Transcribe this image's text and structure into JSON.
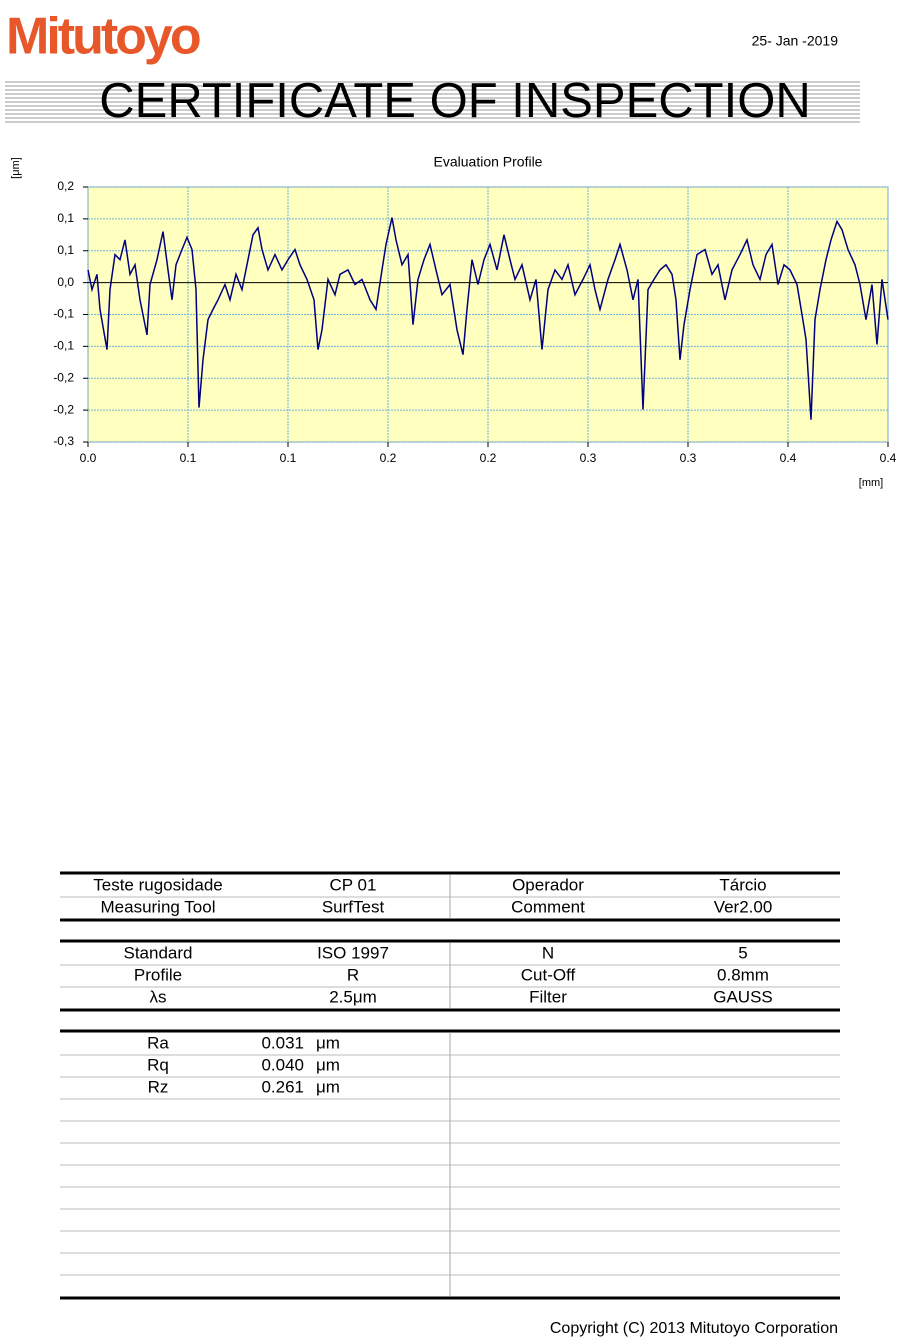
{
  "header": {
    "logo": "Mitutoyo",
    "date": "25- Jan -2019",
    "title": "CERTIFICATE OF INSPECTION"
  },
  "chart_data": {
    "type": "line",
    "title": "Evaluation Profile",
    "y_label": "[μm]",
    "x_label": "[mm]",
    "color": "#000080",
    "grid": true,
    "xlim": [
      0,
      0.4
    ],
    "xticks": [
      {
        "value": 0,
        "label": "0.0"
      },
      {
        "value": 0.05,
        "label": "0.1"
      },
      0.1,
      {
        "value": 0.15,
        "label": "0.2"
      },
      0.2,
      {
        "value": 0.25,
        "label": "0.3"
      },
      0.3,
      {
        "value": 0.35,
        "label": "0.4"
      },
      0.4
    ],
    "ylim": [
      -0.25,
      0.15
    ],
    "yticks": [
      {
        "value": 0.15,
        "label": "0,2"
      },
      {
        "value": 0.1,
        "label": "0,1"
      },
      {
        "value": 0.05,
        "label": "0,1"
      },
      {
        "value": 0,
        "label": "0,0"
      },
      {
        "value": -0.05,
        "label": "-0,1"
      },
      {
        "value": -0.1,
        "label": "-0,1"
      },
      {
        "value": -0.15,
        "label": "-0,2"
      },
      {
        "value": -0.2,
        "label": "-0,2"
      },
      {
        "value": -0.25,
        "label": "-0,3"
      }
    ],
    "x": [
      0,
      0.002,
      0.0045,
      0.006,
      0.0095,
      0.011,
      0.0135,
      0.016,
      0.0185,
      0.021,
      0.0235,
      0.026,
      0.0295,
      0.031,
      0.0345,
      0.0375,
      0.04,
      0.042,
      0.044,
      0.047,
      0.0495,
      0.052,
      0.054,
      0.0555,
      0.0575,
      0.06,
      0.0625,
      0.065,
      0.0685,
      0.071,
      0.074,
      0.077,
      0.08,
      0.0825,
      0.085,
      0.087,
      0.09,
      0.0935,
      0.097,
      0.1,
      0.1035,
      0.106,
      0.1095,
      0.113,
      0.115,
      0.117,
      0.12,
      0.1235,
      0.126,
      0.13,
      0.1335,
      0.137,
      0.141,
      0.144,
      0.147,
      0.149,
      0.152,
      0.154,
      0.157,
      0.16,
      0.1625,
      0.165,
      0.168,
      0.171,
      0.174,
      0.177,
      0.181,
      0.1845,
      0.1875,
      0.1895,
      0.192,
      0.195,
      0.198,
      0.201,
      0.2045,
      0.208,
      0.211,
      0.2135,
      0.217,
      0.221,
      0.224,
      0.227,
      0.23,
      0.2335,
      0.237,
      0.24,
      0.2435,
      0.2475,
      0.251,
      0.2535,
      0.256,
      0.26,
      0.2635,
      0.266,
      0.2695,
      0.2725,
      0.275,
      0.2775,
      0.28,
      0.283,
      0.286,
      0.289,
      0.292,
      0.294,
      0.296,
      0.298,
      0.301,
      0.3045,
      0.3085,
      0.312,
      0.315,
      0.3185,
      0.322,
      0.326,
      0.3295,
      0.3325,
      0.336,
      0.339,
      0.342,
      0.345,
      0.348,
      0.351,
      0.3545,
      0.357,
      0.359,
      0.3615,
      0.3635,
      0.366,
      0.369,
      0.3715,
      0.3745,
      0.377,
      0.38,
      0.3835,
      0.386,
      0.389,
      0.392,
      0.3945,
      0.397,
      0.4
    ],
    "values": [
      0.02,
      -0.011,
      0.013,
      -0.042,
      -0.105,
      -0.011,
      0.044,
      0.036,
      0.067,
      0.013,
      0.028,
      -0.027,
      -0.082,
      -0.003,
      0.036,
      0.08,
      0.02,
      -0.027,
      0.028,
      0.052,
      0.071,
      0.052,
      -0.011,
      -0.196,
      -0.121,
      -0.058,
      -0.042,
      -0.027,
      -0.003,
      -0.027,
      0.013,
      -0.011,
      0.036,
      0.075,
      0.086,
      0.052,
      0.02,
      0.044,
      0.02,
      0.036,
      0.052,
      0.028,
      0.005,
      -0.027,
      -0.105,
      -0.074,
      0.005,
      -0.019,
      0.013,
      0.02,
      -0.003,
      0.005,
      -0.027,
      -0.042,
      0.02,
      0.06,
      0.102,
      0.067,
      0.028,
      0.044,
      -0.066,
      0.005,
      0.036,
      0.06,
      0.02,
      -0.019,
      -0.003,
      -0.074,
      -0.113,
      -0.042,
      0.036,
      -0.003,
      0.036,
      0.06,
      0.02,
      0.075,
      0.036,
      0.005,
      0.028,
      -0.027,
      0.005,
      -0.105,
      -0.011,
      0.02,
      0.005,
      0.028,
      -0.019,
      0.005,
      0.028,
      -0.011,
      -0.042,
      0.005,
      0.036,
      0.06,
      0.02,
      -0.027,
      0.005,
      -0.199,
      -0.011,
      0.005,
      0.02,
      0.028,
      0.013,
      -0.027,
      -0.121,
      -0.066,
      -0.011,
      0.044,
      0.052,
      0.013,
      0.028,
      -0.027,
      0.02,
      0.044,
      0.067,
      0.028,
      0.005,
      0.044,
      0.06,
      -0.003,
      0.028,
      0.02,
      -0.003,
      -0.05,
      -0.089,
      -0.215,
      -0.058,
      -0.011,
      0.036,
      0.067,
      0.096,
      0.083,
      0.052,
      0.028,
      -0.003,
      -0.058,
      -0.003,
      -0.097,
      0.005,
      -0.058
    ]
  },
  "info_table": {
    "rows": [
      [
        "Teste rugosidade",
        "CP 01",
        "Operador",
        "Tárcio"
      ],
      [
        "Measuring Tool",
        "SurfTest",
        "Comment",
        "Ver2.00"
      ]
    ]
  },
  "conditions_table": {
    "rows": [
      [
        "Standard",
        "ISO 1997",
        "N",
        "5"
      ],
      [
        "Profile",
        "R",
        "Cut-Off",
        "0.8mm"
      ],
      [
        "λs",
        "2.5μm",
        "Filter",
        "GAUSS"
      ]
    ]
  },
  "results_table": {
    "rows": [
      [
        "Ra",
        "0.031",
        "μm"
      ],
      [
        "Rq",
        "0.040",
        "μm"
      ],
      [
        "Rz",
        "0.261",
        "μm"
      ]
    ]
  },
  "footer": "Copyright (C) 2013 Mitutoyo Corporation"
}
